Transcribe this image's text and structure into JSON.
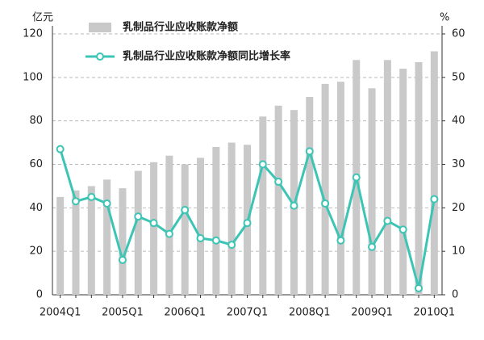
{
  "chart_data": {
    "type": "bar-line",
    "y_unit": "亿元",
    "y2_unit": "%",
    "categories": [
      "2004Q1",
      null,
      null,
      null,
      "2005Q1",
      null,
      null,
      null,
      "2006Q1",
      null,
      null,
      null,
      "2007Q1",
      null,
      null,
      null,
      "2008Q1",
      null,
      null,
      null,
      "2009Q1",
      null,
      null,
      null,
      "2010Q1"
    ],
    "series": [
      {
        "name": "乳制品行业应收账款净额",
        "type": "bar",
        "color": "#c9c9c9",
        "values": [
          45,
          48,
          50,
          53,
          49,
          57,
          61,
          64,
          60,
          63,
          68,
          70,
          69,
          82,
          87,
          85,
          91,
          97,
          98,
          108,
          95,
          108,
          104,
          107,
          112
        ]
      },
      {
        "name": "乳制品行业应收账款净额同比增长率",
        "type": "line",
        "axis": "y2",
        "color": "#3cc4b4",
        "values": [
          33.5,
          21.5,
          22.5,
          21,
          8,
          18,
          16.5,
          14,
          19.5,
          13,
          12.5,
          11.5,
          16.5,
          30,
          26,
          20.5,
          33,
          21,
          12.5,
          27,
          11,
          17,
          15,
          1.5,
          22
        ]
      }
    ],
    "ylim": [
      0,
      120
    ],
    "yticks": [
      0,
      20,
      40,
      60,
      80,
      100,
      120
    ],
    "y2lim": [
      0,
      60
    ],
    "y2ticks": [
      0,
      10,
      20,
      30,
      40,
      50,
      60
    ],
    "grid": true,
    "legend": "top"
  }
}
